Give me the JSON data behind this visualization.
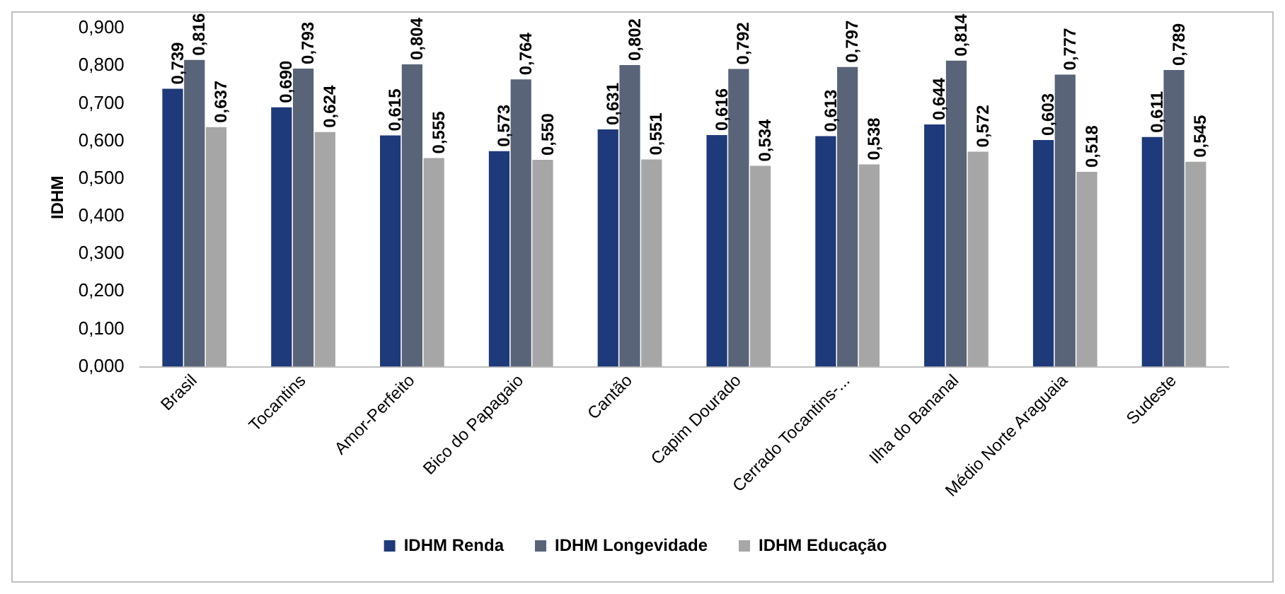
{
  "chart_data": {
    "type": "bar",
    "ylabel": "IDHM",
    "categories": [
      "Brasil",
      "Tocantins",
      "Amor-Perfeito",
      "Bico do Papagaio",
      "Cantão",
      "Capim Dourado",
      "Cerrado Tocantins-...",
      "Ilha do Bananal",
      "Médio Norte Araguaia",
      "Sudeste"
    ],
    "series": [
      {
        "name": "IDHM Renda",
        "color": "#1f3a7a",
        "values": [
          0.739,
          0.69,
          0.615,
          0.573,
          0.631,
          0.616,
          0.613,
          0.644,
          0.603,
          0.611
        ],
        "value_labels": [
          "0,739",
          "0,690",
          "0,615",
          "0,573",
          "0,631",
          "0,616",
          "0,613",
          "0,644",
          "0,603",
          "0,611"
        ]
      },
      {
        "name": "IDHM Longevidade",
        "color": "#5a6478",
        "values": [
          0.816,
          0.793,
          0.804,
          0.764,
          0.802,
          0.792,
          0.797,
          0.814,
          0.777,
          0.789
        ],
        "value_labels": [
          "0,816",
          "0,793",
          "0,804",
          "0,764",
          "0,802",
          "0,792",
          "0,797",
          "0,814",
          "0,777",
          "0,789"
        ]
      },
      {
        "name": "IDHM Educação",
        "color": "#a6a6a6",
        "values": [
          0.637,
          0.624,
          0.555,
          0.55,
          0.551,
          0.534,
          0.538,
          0.572,
          0.518,
          0.545
        ],
        "value_labels": [
          "0,637",
          "0,624",
          "0,555",
          "0,550",
          "0,551",
          "0,534",
          "0,538",
          "0,572",
          "0,518",
          "0,545"
        ]
      }
    ],
    "ylim": [
      0,
      0.9
    ],
    "yticks": [
      {
        "value": 0,
        "label": "0,000"
      },
      {
        "value": 0.1,
        "label": "0,100"
      },
      {
        "value": 0.2,
        "label": "0,200"
      },
      {
        "value": 0.3,
        "label": "0,300"
      },
      {
        "value": 0.4,
        "label": "0,400"
      },
      {
        "value": 0.5,
        "label": "0,500"
      },
      {
        "value": 0.6,
        "label": "0,600"
      },
      {
        "value": 0.7,
        "label": "0,700"
      },
      {
        "value": 0.8,
        "label": "0,800"
      },
      {
        "value": 0.9,
        "label": "0,900"
      }
    ],
    "grid": false,
    "legend": "bottom"
  }
}
